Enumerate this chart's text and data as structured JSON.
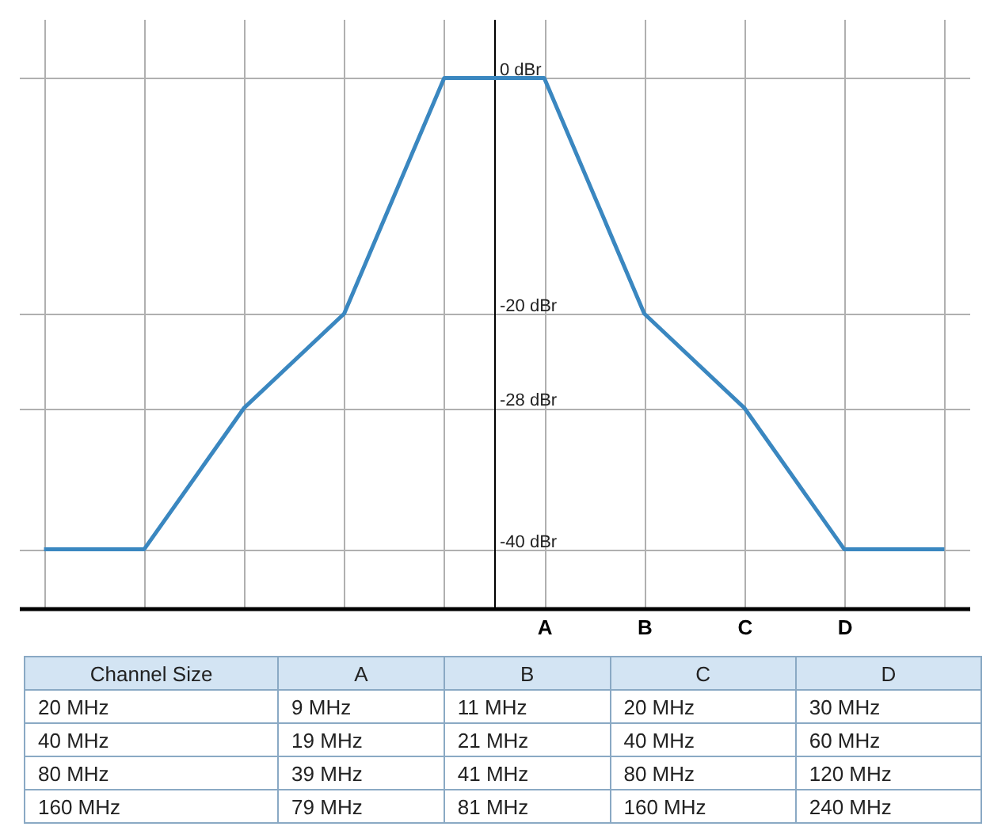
{
  "chart_data": {
    "type": "line",
    "categories": [
      null,
      null,
      null,
      null,
      null,
      "A",
      "B",
      "C",
      "D",
      null
    ],
    "series": [
      {
        "color": "#3a87c0",
        "values": [
          -40,
          -40,
          -28,
          -20,
          0,
          0,
          -20,
          -28,
          -40,
          -40
        ]
      }
    ],
    "ylim": [
      -45,
      5
    ],
    "yticks": [
      {
        "value": -40,
        "label": "-40 dBr"
      },
      {
        "value": -28,
        "label": "-28 dBr"
      },
      {
        "value": -20,
        "label": "-20 dBr"
      },
      {
        "value": 0,
        "label": "0 dBr"
      }
    ],
    "grid": true,
    "marker": "none",
    "line_style": "solid",
    "annotations": [
      "Channel Size",
      "A",
      "B",
      "C",
      "D",
      "20 MHz",
      "9 MHz",
      "11 MHz",
      "20 MHz",
      "30 MHz",
      "40 MHz",
      "19 MHz",
      "21 MHz",
      "40 MHz",
      "60 MHz",
      "80 MHz",
      "39 MHz",
      "41 MHz",
      "80 MHz",
      "120 MHz",
      "160 MHz",
      "79 MHz",
      "81 MHz",
      "160 MHz",
      "240 MHz"
    ]
  }
}
